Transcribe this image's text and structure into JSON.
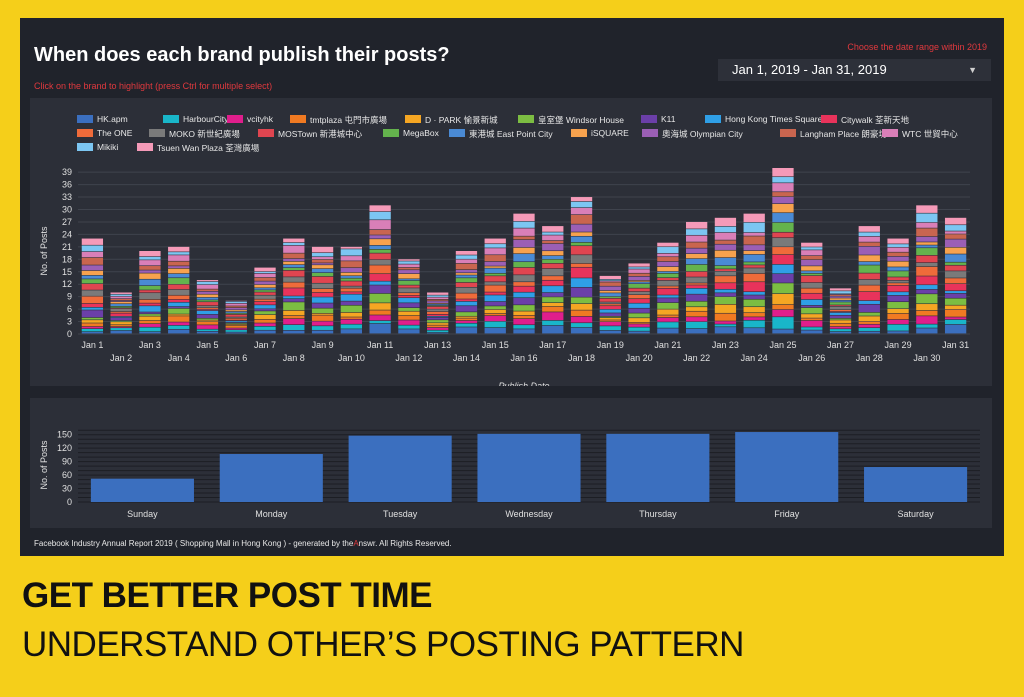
{
  "title": "When does each brand publish their posts?",
  "subtitle": "Click on the brand to highlight (press Ctrl for multiple select)",
  "date_range": {
    "label": "Choose the date range within  2019",
    "value": "Jan 1, 2019 - Jan 31, 2019"
  },
  "footer": {
    "prefix": "Facebook Industry Annual  Report 2019 ( Shopping Mall in Hong Kong ) - generated by the",
    "brand": "A",
    "suffix": "nswr. All Rights Reserved."
  },
  "banner": {
    "line1": "GET BETTER POST TIME",
    "line2": "UNDERSTAND OTHER’S POSTING PATTERN"
  },
  "chart_data": [
    {
      "type": "bar",
      "stacked": true,
      "title": "",
      "xlabel": "Publish Date",
      "ylabel": "No. of Posts",
      "ylim": [
        0,
        40
      ],
      "yticks": [
        0,
        3,
        6,
        9,
        12,
        15,
        18,
        21,
        24,
        27,
        30,
        33,
        36,
        39
      ],
      "grid": true,
      "legend_position": "top",
      "categories": [
        "Jan 1",
        "Jan 2",
        "Jan 3",
        "Jan 4",
        "Jan 5",
        "Jan 6",
        "Jan 7",
        "Jan 8",
        "Jan 9",
        "Jan 10",
        "Jan 11",
        "Jan 12",
        "Jan 13",
        "Jan 14",
        "Jan 15",
        "Jan 16",
        "Jan 17",
        "Jan 18",
        "Jan 19",
        "Jan 20",
        "Jan 21",
        "Jan 22",
        "Jan 23",
        "Jan 24",
        "Jan 25",
        "Jan 26",
        "Jan 27",
        "Jan 28",
        "Jan 29",
        "Jan 30",
        "Jan 31"
      ],
      "totals": [
        23,
        10,
        20,
        21,
        13,
        8,
        16,
        23,
        21,
        21,
        31,
        18,
        10,
        20,
        23,
        29,
        26,
        33,
        14,
        17,
        22,
        27,
        28,
        29,
        40,
        22,
        11,
        26,
        23,
        31,
        28
      ],
      "series": [
        {
          "name": "HK.apm",
          "color": "#3b6fbf"
        },
        {
          "name": "HarbourCity",
          "color": "#19b6c9"
        },
        {
          "name": "vcityhk",
          "color": "#e01e8c"
        },
        {
          "name": "tmtplaza 屯門市廣場",
          "color": "#f07a22"
        },
        {
          "name": "D · PARK 愉景新城",
          "color": "#f5a623"
        },
        {
          "name": "皇室堡 Windsor House",
          "color": "#7cbd42"
        },
        {
          "name": "K11",
          "color": "#6b3fa8"
        },
        {
          "name": "Hong Kong Times Square",
          "color": "#2f9fe6"
        },
        {
          "name": "Citywalk 荃新天地",
          "color": "#e8335b"
        },
        {
          "name": "The ONE",
          "color": "#ef6b3a"
        },
        {
          "name": "MOKO 新世紀廣場",
          "color": "#7a7a7a"
        },
        {
          "name": "MOSTown 新港城中心",
          "color": "#e04550"
        },
        {
          "name": "MegaBox",
          "color": "#64b34d"
        },
        {
          "name": "東港城 East Point City",
          "color": "#4a8ad4"
        },
        {
          "name": "iSQUARE",
          "color": "#f7a24e"
        },
        {
          "name": "奧海城 Olympian City",
          "color": "#9b5fb5"
        },
        {
          "name": "Langham Place 朗豪坊",
          "color": "#c9654f"
        },
        {
          "name": "WTC 世貿中心",
          "color": "#d97fb8"
        },
        {
          "name": "Mikiki",
          "color": "#7cc6f2"
        },
        {
          "name": "Tsuen Wan Plaza 荃灣廣場",
          "color": "#f59ab8"
        }
      ]
    },
    {
      "type": "bar",
      "title": "",
      "xlabel": "",
      "ylabel": "No. of Posts",
      "ylim": [
        0,
        165
      ],
      "yticks": [
        0,
        30,
        60,
        90,
        120,
        150
      ],
      "grid": true,
      "color": "#3b6fbf",
      "categories": [
        "Sunday",
        "Monday",
        "Tuesday",
        "Wednesday",
        "Thursday",
        "Friday",
        "Saturday"
      ],
      "values": [
        52,
        107,
        148,
        152,
        152,
        156,
        78
      ]
    }
  ]
}
